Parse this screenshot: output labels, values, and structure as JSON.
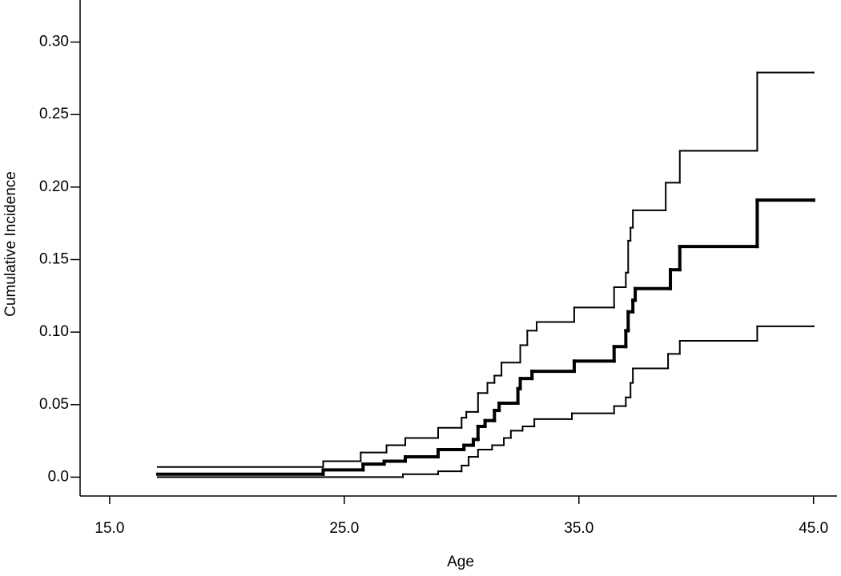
{
  "chart_data": {
    "type": "step",
    "xlabel": "Age",
    "ylabel": "Cumulative Incidence",
    "xlim": [
      13.74,
      46.0
    ],
    "ylim": [
      -0.013,
      0.329
    ],
    "xticks": [
      {
        "value": 15,
        "label": "15.0"
      },
      {
        "value": 25,
        "label": "25.0"
      },
      {
        "value": 35,
        "label": "35.0"
      },
      {
        "value": 45,
        "label": "45.0"
      }
    ],
    "yticks": [
      {
        "value": 0,
        "label": "0.0"
      },
      {
        "value": 0.05,
        "label": "0.05"
      },
      {
        "value": 0.1,
        "label": "0.10"
      },
      {
        "value": 0.15,
        "label": "0.15"
      },
      {
        "value": 0.2,
        "label": "0.20"
      },
      {
        "value": 0.25,
        "label": "0.25"
      },
      {
        "value": 0.3,
        "label": "0.30"
      }
    ],
    "series": [
      {
        "color": "#000000",
        "width": 4,
        "x": [
          17.05,
          24.1,
          25.8,
          26.7,
          27.6,
          29.0,
          30.1,
          30.5,
          30.7,
          31.0,
          31.4,
          31.6,
          32.4,
          32.5,
          33.0,
          34.8,
          36.5,
          37.0,
          37.1,
          37.3,
          37.4,
          38.9,
          39.3,
          42.6,
          45.0
        ],
        "values": [
          0.002,
          0.005,
          0.009,
          0.011,
          0.014,
          0.019,
          0.022,
          0.026,
          0.035,
          0.039,
          0.046,
          0.051,
          0.061,
          0.068,
          0.073,
          0.08,
          0.09,
          0.101,
          0.114,
          0.122,
          0.13,
          0.143,
          0.159,
          0.191,
          0.191
        ]
      },
      {
        "color": "#000000",
        "width": 2,
        "x": [
          17.05,
          24.1,
          25.7,
          26.8,
          27.6,
          29.0,
          30.0,
          30.2,
          30.7,
          31.1,
          31.4,
          31.7,
          32.5,
          32.8,
          33.2,
          34.8,
          36.5,
          37.0,
          37.1,
          37.2,
          37.3,
          38.7,
          39.3,
          42.6,
          45.0
        ],
        "values": [
          0.007,
          0.011,
          0.017,
          0.022,
          0.027,
          0.034,
          0.041,
          0.045,
          0.058,
          0.065,
          0.07,
          0.079,
          0.091,
          0.101,
          0.107,
          0.117,
          0.131,
          0.141,
          0.163,
          0.172,
          0.184,
          0.203,
          0.225,
          0.279,
          0.279
        ]
      },
      {
        "color": "#000000",
        "width": 2,
        "x": [
          17.05,
          27.5,
          29.0,
          30.0,
          30.3,
          30.7,
          31.3,
          31.8,
          32.1,
          32.6,
          33.1,
          34.7,
          36.5,
          37.0,
          37.2,
          37.3,
          38.8,
          39.3,
          42.6,
          45.0
        ],
        "values": [
          0.0,
          0.002,
          0.004,
          0.008,
          0.014,
          0.019,
          0.022,
          0.027,
          0.032,
          0.035,
          0.04,
          0.044,
          0.049,
          0.055,
          0.065,
          0.075,
          0.085,
          0.094,
          0.104,
          0.104
        ]
      }
    ]
  }
}
